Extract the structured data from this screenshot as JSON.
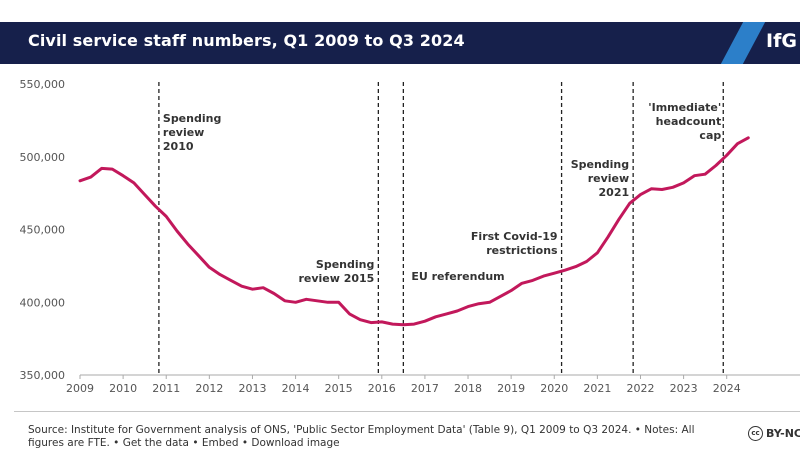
{
  "header": {
    "title": "Civil service staff numbers, Q1 2009 to Q3 2024",
    "logo_text": "IfG"
  },
  "colors": {
    "header_bg": "#16204b",
    "accent_blue": "#2c7fc9",
    "line": "#c2185b",
    "axis_text": "#555555",
    "annotation_text": "#333333"
  },
  "chart_data": {
    "type": "line",
    "title": "Civil service staff numbers, Q1 2009 to Q3 2024",
    "xlabel": "",
    "ylabel": "",
    "xlim": [
      2009,
      2025.7
    ],
    "ylim": [
      350000,
      550000
    ],
    "grid": false,
    "x_tick_labels": [
      "2009",
      "2010",
      "2011",
      "2012",
      "2013",
      "2014",
      "2015",
      "2016",
      "2017",
      "2018",
      "2019",
      "2020",
      "2021",
      "2022",
      "2023",
      "2024"
    ],
    "y_tick_labels": [
      "350,000",
      "400,000",
      "450,000",
      "500,000",
      "550,000"
    ],
    "y_tick_values": [
      350000,
      400000,
      450000,
      500000,
      550000
    ],
    "series": [
      {
        "x": [
          2009,
          2009.25,
          2009.5,
          2009.75,
          2010,
          2010.25,
          2010.5,
          2010.75,
          2011,
          2011.25,
          2011.5,
          2011.75,
          2012,
          2012.25,
          2012.5,
          2012.75,
          2013,
          2013.25,
          2013.5,
          2013.75,
          2014,
          2014.25,
          2014.5,
          2014.75,
          2015,
          2015.25,
          2015.5,
          2015.75,
          2016,
          2016.25,
          2016.5,
          2016.75,
          2017,
          2017.25,
          2017.5,
          2017.75,
          2018,
          2018.25,
          2018.5,
          2018.75,
          2019,
          2019.25,
          2019.5,
          2019.75,
          2020,
          2020.25,
          2020.5,
          2020.75,
          2021,
          2021.25,
          2021.5,
          2021.75,
          2022,
          2022.25,
          2022.5,
          2022.75,
          2023,
          2023.25,
          2023.5,
          2023.75,
          2024,
          2024.25,
          2024.5
        ],
        "y": [
          483500,
          486000,
          492000,
          491500,
          487000,
          482000,
          474000,
          466000,
          459000,
          449000,
          440000,
          432000,
          424000,
          419000,
          415000,
          411000,
          409000,
          410000,
          406000,
          401000,
          400000,
          402000,
          401000,
          400000,
          400000,
          392000,
          388000,
          386000,
          386500,
          385000,
          384500,
          385000,
          387000,
          390000,
          392000,
          394000,
          397000,
          399000,
          400000,
          404000,
          408000,
          413000,
          415000,
          418000,
          420000,
          422000,
          424500,
          428000,
          434000,
          445000,
          457000,
          468000,
          474000,
          478000,
          477500,
          479000,
          482000,
          487000,
          488000,
          494000,
          501000,
          509000,
          513000
        ]
      }
    ],
    "annotations": [
      {
        "x": 2010.83,
        "lines": [
          "Spending",
          "review",
          "2010"
        ]
      },
      {
        "x": 2015.92,
        "lines": [
          "Spending",
          "review 2015"
        ]
      },
      {
        "x": 2016.5,
        "lines": [
          "EU referendum"
        ]
      },
      {
        "x": 2020.17,
        "lines": [
          "First Covid-19",
          "restrictions"
        ]
      },
      {
        "x": 2021.83,
        "lines": [
          "Spending",
          "review",
          "2021"
        ]
      },
      {
        "x": 2023.92,
        "lines": [
          "'Immediate'",
          "headcount",
          "cap"
        ]
      }
    ]
  },
  "footer": {
    "source": "Source: Institute for Government analysis of ONS, 'Public Sector Employment Data' (Table 9), Q1 2009 to Q3 2024. • Notes: All figures are FTE. • Get the data • Embed • Download image",
    "license_icon": "cc",
    "license_label": "BY-NC"
  }
}
